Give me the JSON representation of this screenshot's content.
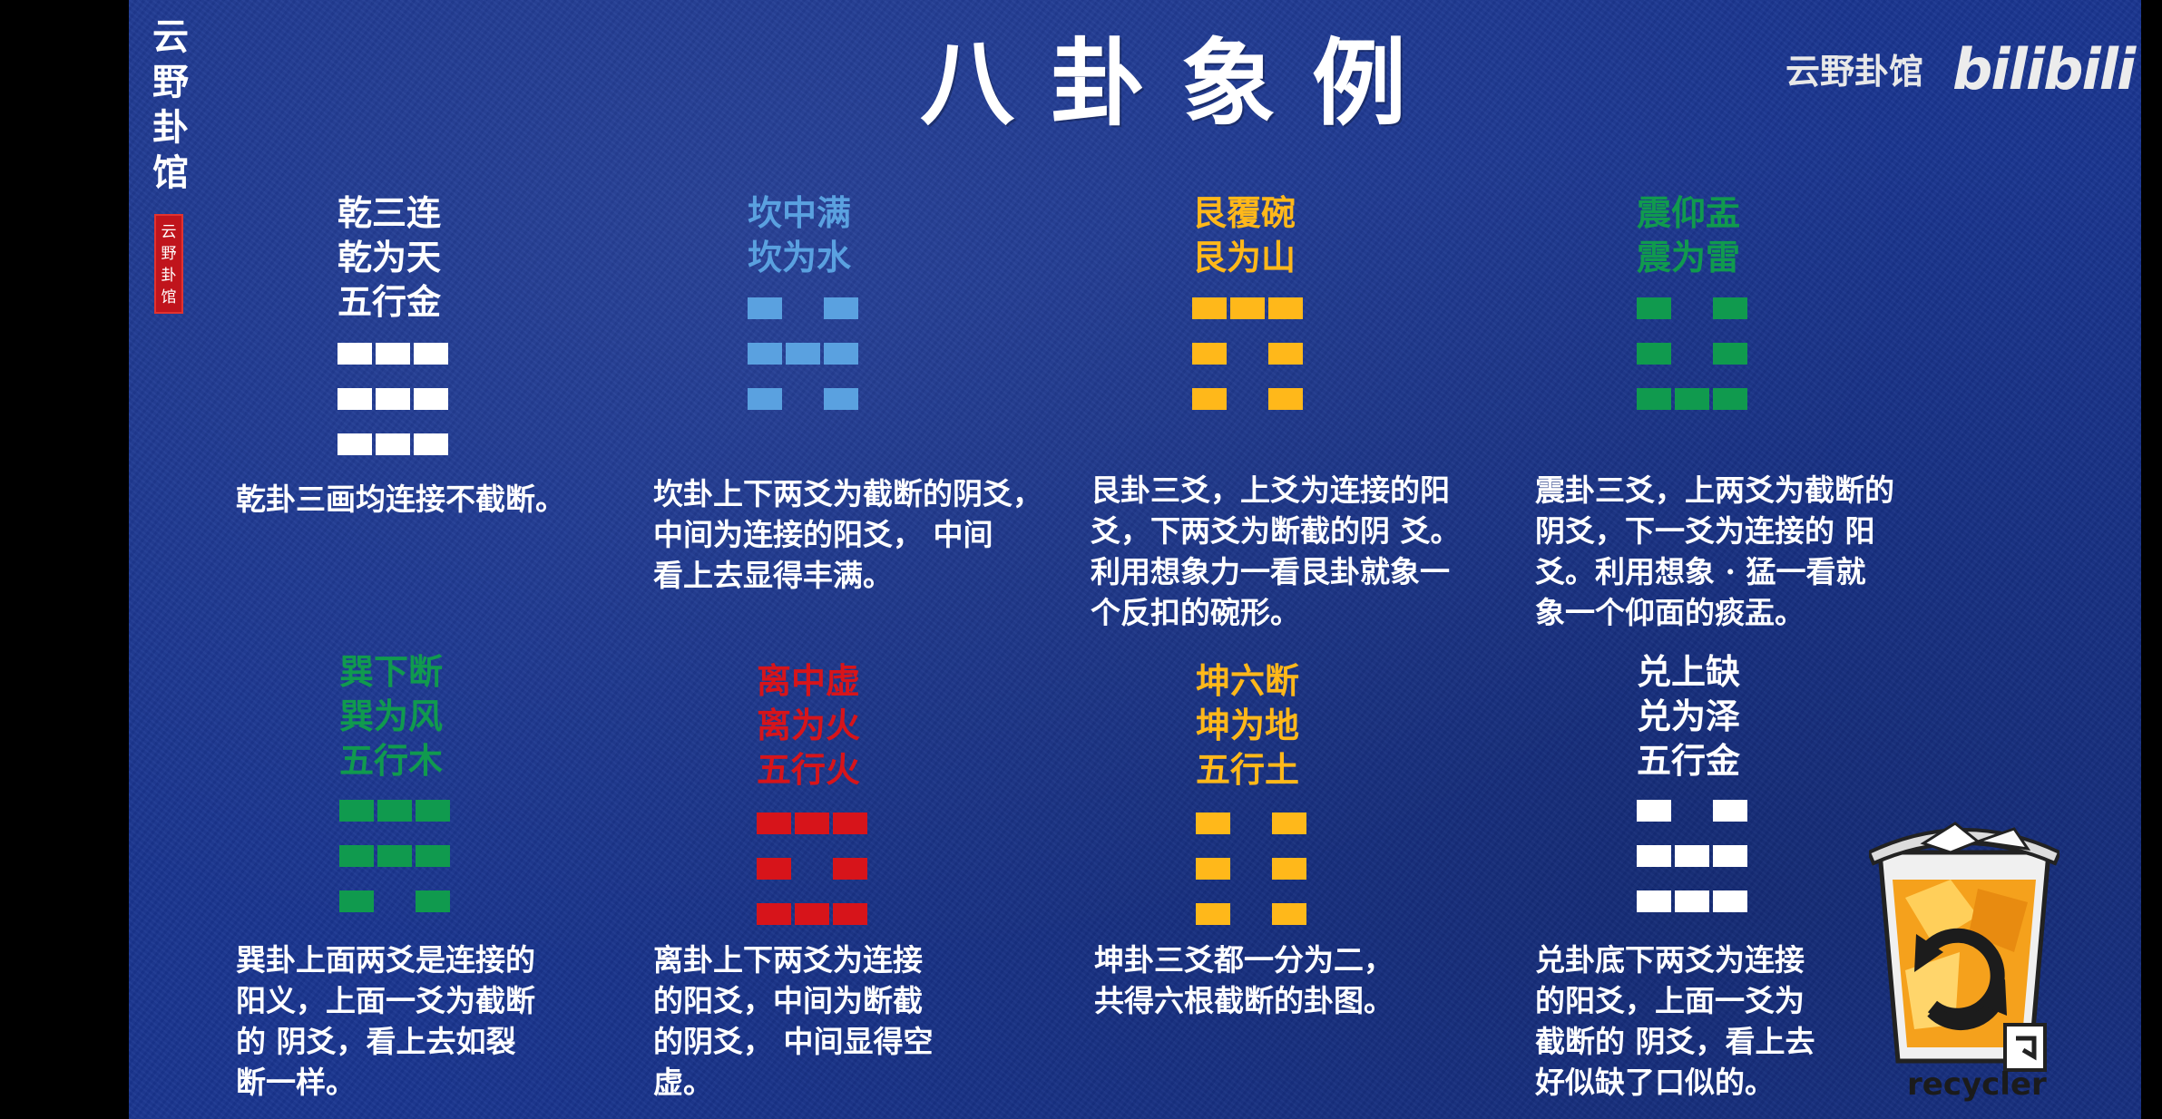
{
  "left_brand": {
    "vertical_title": [
      "云",
      "野",
      "卦",
      "馆"
    ],
    "seal": [
      "云",
      "野",
      "卦",
      "馆"
    ]
  },
  "header": {
    "title": "八卦象例",
    "channel_name": "云野卦馆",
    "platform_logo": "bilibili"
  },
  "colors": {
    "background": "#1a3590",
    "white": "#ffffff",
    "blue": "#5aa1e0",
    "yellow": "#ffb81a",
    "green": "#109a4e",
    "red": "#d7141a"
  },
  "trigrams": [
    {
      "id": "qian",
      "color": "#ffffff",
      "name_lines": [
        "乾三连",
        "乾为天",
        "五行金"
      ],
      "lines_top_to_bottom": [
        "yang",
        "yang",
        "yang"
      ],
      "description": [
        "乾卦三画均连接不截断。"
      ]
    },
    {
      "id": "kan",
      "color": "#5aa1e0",
      "name_lines": [
        "坎中满",
        "坎为水"
      ],
      "lines_top_to_bottom": [
        "yin",
        "yang",
        "yin"
      ],
      "description": [
        "坎卦上下两爻为截断的阴爻，",
        "中间为连接的阳爻，  中间",
        "看上去显得丰满。"
      ]
    },
    {
      "id": "gen",
      "color": "#ffb81a",
      "name_lines": [
        "艮覆碗",
        "艮为山"
      ],
      "lines_top_to_bottom": [
        "yang",
        "yin",
        "yin"
      ],
      "description": [
        "艮卦三爻，上爻为连接的阳",
        "爻，下两爻为断截的阴  爻。",
        "利用想象力一看艮卦就象一",
        "个反扣的碗形。"
      ]
    },
    {
      "id": "zhen",
      "color": "#109a4e",
      "name_lines": [
        "震仰盂",
        "震为雷"
      ],
      "lines_top_to_bottom": [
        "yin",
        "yin",
        "yang"
      ],
      "description": [
        "震卦三爻，上两爻为截断的",
        "阴爻，下一爻为连接的  阳",
        "爻。利用想象  ·  猛一看就",
        "象一个仰面的痰盂。"
      ]
    },
    {
      "id": "xun",
      "color": "#109a4e",
      "name_lines": [
        "巽下断",
        "巽为风",
        "五行木"
      ],
      "lines_top_to_bottom": [
        "yang",
        "yang",
        "yin"
      ],
      "description": [
        "巽卦上面两爻是连接的",
        "阳义，上面一爻为截断",
        "的  阴爻，看上去如裂",
        "断一样。"
      ]
    },
    {
      "id": "li",
      "color": "#d7141a",
      "name_lines": [
        "离中虚",
        "离为火",
        "五行火"
      ],
      "lines_top_to_bottom": [
        "yang",
        "yin",
        "yang"
      ],
      "description": [
        "离卦上下两爻为连接",
        "的阳爻，中间为断截",
        "的阴爻，  中间显得空",
        "虚。"
      ]
    },
    {
      "id": "kun",
      "color": "#ffb81a",
      "name_lines": [
        "坤六断",
        "坤为地",
        "五行土"
      ],
      "lines_top_to_bottom": [
        "yin",
        "yin",
        "yin"
      ],
      "description": [
        "坤卦三爻都一分为二，",
        "共得六根截断的卦图。"
      ]
    },
    {
      "id": "dui",
      "color": "#ffffff",
      "name_lines": [
        "兑上缺",
        "兑为泽",
        "五行金"
      ],
      "lines_top_to_bottom": [
        "yin",
        "yang",
        "yang"
      ],
      "description": [
        "兑卦底下两爻为连接",
        "的阳爻，上面一爻为",
        "截断的  阴爻，看上去",
        "好似缺了口似的。"
      ]
    }
  ],
  "recycler": {
    "icon": "recycle-bin-icon",
    "label": "recycler"
  }
}
